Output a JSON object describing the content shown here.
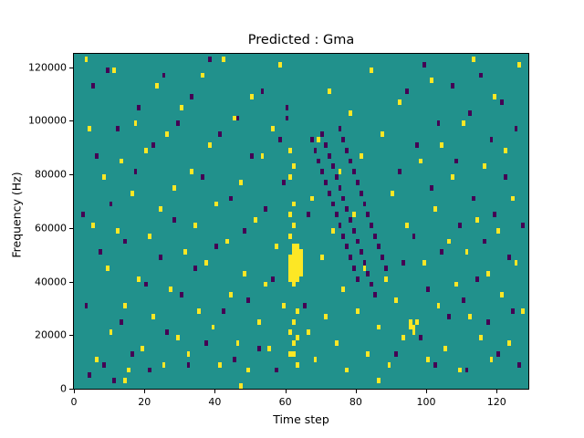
{
  "title": "Predicted : Gma",
  "xlabel": "Time step",
  "ylabel": "Frequency (Hz)",
  "chart_data": {
    "type": "heatmap",
    "title": "Predicted : Gma",
    "xlabel": "Time step",
    "ylabel": "Frequency (Hz)",
    "xlim": [
      0,
      129
    ],
    "ylim": [
      0,
      125000
    ],
    "x_ticks": [
      0,
      20,
      40,
      60,
      80,
      100,
      120
    ],
    "y_ticks": [
      0,
      20000,
      40000,
      60000,
      80000,
      100000,
      120000
    ],
    "grid": false,
    "legend": "none",
    "colors": {
      "background": "#21918c",
      "yellow": "#fde725",
      "dark": "#440154"
    },
    "cell": {
      "time_width": 1,
      "freq_height": 2000
    },
    "points_yellow": [
      [
        61,
        40000
      ],
      [
        61,
        42000
      ],
      [
        61,
        44000
      ],
      [
        61,
        46000
      ],
      [
        61,
        48000
      ],
      [
        62,
        38000
      ],
      [
        62,
        40000
      ],
      [
        62,
        42000
      ],
      [
        62,
        44000
      ],
      [
        62,
        46000
      ],
      [
        62,
        48000
      ],
      [
        62,
        50000
      ],
      [
        62,
        52000
      ],
      [
        63,
        40000
      ],
      [
        63,
        42000
      ],
      [
        63,
        44000
      ],
      [
        63,
        46000
      ],
      [
        63,
        48000
      ],
      [
        63,
        50000
      ],
      [
        63,
        52000
      ],
      [
        64,
        42000
      ],
      [
        64,
        44000
      ],
      [
        64,
        46000
      ],
      [
        64,
        48000
      ],
      [
        64,
        50000
      ],
      [
        61,
        12000
      ],
      [
        62,
        16000
      ],
      [
        61,
        20000
      ],
      [
        62,
        24000
      ],
      [
        63,
        28000
      ],
      [
        61,
        56000
      ],
      [
        62,
        60000
      ],
      [
        61,
        64000
      ],
      [
        62,
        68000
      ],
      [
        61,
        78000
      ],
      [
        62,
        82000
      ],
      [
        61,
        88000
      ],
      [
        63,
        18000
      ],
      [
        62,
        12000
      ],
      [
        63,
        8000
      ],
      [
        3,
        122000
      ],
      [
        4,
        96000
      ],
      [
        5,
        60000
      ],
      [
        6,
        10000
      ],
      [
        8,
        78000
      ],
      [
        9,
        44000
      ],
      [
        10,
        20000
      ],
      [
        11,
        118000
      ],
      [
        12,
        58000
      ],
      [
        13,
        84000
      ],
      [
        14,
        30000
      ],
      [
        15,
        6000
      ],
      [
        16,
        72000
      ],
      [
        17,
        98000
      ],
      [
        18,
        40000
      ],
      [
        19,
        14000
      ],
      [
        20,
        88000
      ],
      [
        21,
        56000
      ],
      [
        22,
        26000
      ],
      [
        23,
        112000
      ],
      [
        24,
        66000
      ],
      [
        25,
        8000
      ],
      [
        26,
        94000
      ],
      [
        27,
        36000
      ],
      [
        28,
        74000
      ],
      [
        29,
        18000
      ],
      [
        30,
        104000
      ],
      [
        31,
        50000
      ],
      [
        32,
        12000
      ],
      [
        33,
        80000
      ],
      [
        34,
        60000
      ],
      [
        35,
        28000
      ],
      [
        36,
        116000
      ],
      [
        37,
        46000
      ],
      [
        38,
        90000
      ],
      [
        39,
        22000
      ],
      [
        40,
        68000
      ],
      [
        41,
        8000
      ],
      [
        42,
        122000
      ],
      [
        43,
        54000
      ],
      [
        44,
        34000
      ],
      [
        45,
        100000
      ],
      [
        46,
        16000
      ],
      [
        47,
        76000
      ],
      [
        48,
        42000
      ],
      [
        49,
        6000
      ],
      [
        50,
        108000
      ],
      [
        51,
        62000
      ],
      [
        52,
        24000
      ],
      [
        53,
        86000
      ],
      [
        54,
        38000
      ],
      [
        55,
        14000
      ],
      [
        56,
        96000
      ],
      [
        57,
        52000
      ],
      [
        58,
        120000
      ],
      [
        59,
        30000
      ],
      [
        66,
        20000
      ],
      [
        67,
        70000
      ],
      [
        68,
        10000
      ],
      [
        69,
        92000
      ],
      [
        70,
        48000
      ],
      [
        71,
        26000
      ],
      [
        72,
        110000
      ],
      [
        73,
        58000
      ],
      [
        74,
        16000
      ],
      [
        75,
        80000
      ],
      [
        76,
        36000
      ],
      [
        77,
        6000
      ],
      [
        78,
        102000
      ],
      [
        79,
        64000
      ],
      [
        80,
        28000
      ],
      [
        81,
        86000
      ],
      [
        82,
        44000
      ],
      [
        83,
        12000
      ],
      [
        84,
        118000
      ],
      [
        85,
        56000
      ],
      [
        86,
        22000
      ],
      [
        87,
        94000
      ],
      [
        88,
        40000
      ],
      [
        89,
        8000
      ],
      [
        90,
        72000
      ],
      [
        91,
        32000
      ],
      [
        92,
        106000
      ],
      [
        93,
        18000
      ],
      [
        94,
        60000
      ],
      [
        95,
        24000
      ],
      [
        95,
        22000
      ],
      [
        96,
        22000
      ],
      [
        96,
        20000
      ],
      [
        97,
        24000
      ],
      [
        98,
        84000
      ],
      [
        99,
        46000
      ],
      [
        100,
        10000
      ],
      [
        101,
        114000
      ],
      [
        102,
        66000
      ],
      [
        103,
        30000
      ],
      [
        104,
        90000
      ],
      [
        105,
        14000
      ],
      [
        106,
        54000
      ],
      [
        107,
        78000
      ],
      [
        108,
        38000
      ],
      [
        109,
        6000
      ],
      [
        110,
        98000
      ],
      [
        111,
        50000
      ],
      [
        112,
        26000
      ],
      [
        113,
        122000
      ],
      [
        114,
        62000
      ],
      [
        115,
        18000
      ],
      [
        116,
        82000
      ],
      [
        117,
        42000
      ],
      [
        118,
        10000
      ],
      [
        119,
        108000
      ],
      [
        120,
        58000
      ],
      [
        121,
        34000
      ],
      [
        122,
        88000
      ],
      [
        123,
        16000
      ],
      [
        124,
        70000
      ],
      [
        125,
        46000
      ],
      [
        126,
        120000
      ],
      [
        127,
        28000
      ],
      [
        47,
        0
      ],
      [
        86,
        2000
      ],
      [
        14,
        2000
      ]
    ],
    "points_dark": [
      [
        67,
        92000
      ],
      [
        68,
        88000
      ],
      [
        69,
        84000
      ],
      [
        70,
        80000
      ],
      [
        71,
        76000
      ],
      [
        72,
        72000
      ],
      [
        73,
        68000
      ],
      [
        74,
        64000
      ],
      [
        75,
        60000
      ],
      [
        76,
        56000
      ],
      [
        77,
        52000
      ],
      [
        78,
        48000
      ],
      [
        79,
        44000
      ],
      [
        80,
        40000
      ],
      [
        70,
        94000
      ],
      [
        71,
        90000
      ],
      [
        72,
        86000
      ],
      [
        73,
        82000
      ],
      [
        74,
        78000
      ],
      [
        75,
        74000
      ],
      [
        76,
        70000
      ],
      [
        77,
        66000
      ],
      [
        78,
        62000
      ],
      [
        79,
        58000
      ],
      [
        80,
        54000
      ],
      [
        81,
        50000
      ],
      [
        82,
        46000
      ],
      [
        83,
        42000
      ],
      [
        84,
        38000
      ],
      [
        85,
        34000
      ],
      [
        75,
        96000
      ],
      [
        76,
        92000
      ],
      [
        77,
        88000
      ],
      [
        78,
        84000
      ],
      [
        79,
        80000
      ],
      [
        80,
        76000
      ],
      [
        81,
        72000
      ],
      [
        82,
        68000
      ],
      [
        83,
        64000
      ],
      [
        84,
        60000
      ],
      [
        85,
        56000
      ],
      [
        86,
        52000
      ],
      [
        87,
        48000
      ],
      [
        88,
        44000
      ],
      [
        2,
        64000
      ],
      [
        3,
        30000
      ],
      [
        5,
        112000
      ],
      [
        6,
        86000
      ],
      [
        7,
        50000
      ],
      [
        8,
        8000
      ],
      [
        9,
        118000
      ],
      [
        10,
        68000
      ],
      [
        12,
        96000
      ],
      [
        13,
        24000
      ],
      [
        14,
        54000
      ],
      [
        16,
        12000
      ],
      [
        17,
        80000
      ],
      [
        18,
        104000
      ],
      [
        20,
        38000
      ],
      [
        21,
        6000
      ],
      [
        22,
        90000
      ],
      [
        24,
        48000
      ],
      [
        25,
        116000
      ],
      [
        26,
        20000
      ],
      [
        28,
        62000
      ],
      [
        29,
        98000
      ],
      [
        30,
        34000
      ],
      [
        32,
        8000
      ],
      [
        33,
        108000
      ],
      [
        34,
        44000
      ],
      [
        36,
        78000
      ],
      [
        37,
        16000
      ],
      [
        38,
        122000
      ],
      [
        40,
        52000
      ],
      [
        41,
        94000
      ],
      [
        42,
        28000
      ],
      [
        44,
        70000
      ],
      [
        45,
        10000
      ],
      [
        46,
        100000
      ],
      [
        48,
        58000
      ],
      [
        49,
        32000
      ],
      [
        50,
        86000
      ],
      [
        52,
        14000
      ],
      [
        53,
        110000
      ],
      [
        54,
        66000
      ],
      [
        56,
        40000
      ],
      [
        57,
        6000
      ],
      [
        58,
        92000
      ],
      [
        60,
        100000
      ],
      [
        60,
        104000
      ],
      [
        59,
        76000
      ],
      [
        65,
        30000
      ],
      [
        66,
        64000
      ],
      [
        91,
        12000
      ],
      [
        92,
        80000
      ],
      [
        93,
        46000
      ],
      [
        94,
        110000
      ],
      [
        96,
        56000
      ],
      [
        97,
        90000
      ],
      [
        98,
        18000
      ],
      [
        99,
        120000
      ],
      [
        100,
        36000
      ],
      [
        101,
        74000
      ],
      [
        102,
        8000
      ],
      [
        103,
        98000
      ],
      [
        104,
        50000
      ],
      [
        106,
        26000
      ],
      [
        107,
        112000
      ],
      [
        108,
        84000
      ],
      [
        109,
        60000
      ],
      [
        110,
        32000
      ],
      [
        111,
        6000
      ],
      [
        112,
        102000
      ],
      [
        113,
        70000
      ],
      [
        114,
        40000
      ],
      [
        115,
        116000
      ],
      [
        116,
        54000
      ],
      [
        117,
        24000
      ],
      [
        118,
        92000
      ],
      [
        119,
        64000
      ],
      [
        120,
        12000
      ],
      [
        121,
        106000
      ],
      [
        122,
        78000
      ],
      [
        123,
        48000
      ],
      [
        124,
        28000
      ],
      [
        125,
        96000
      ],
      [
        126,
        8000
      ],
      [
        127,
        60000
      ],
      [
        4,
        4000
      ],
      [
        11,
        2000
      ]
    ]
  }
}
